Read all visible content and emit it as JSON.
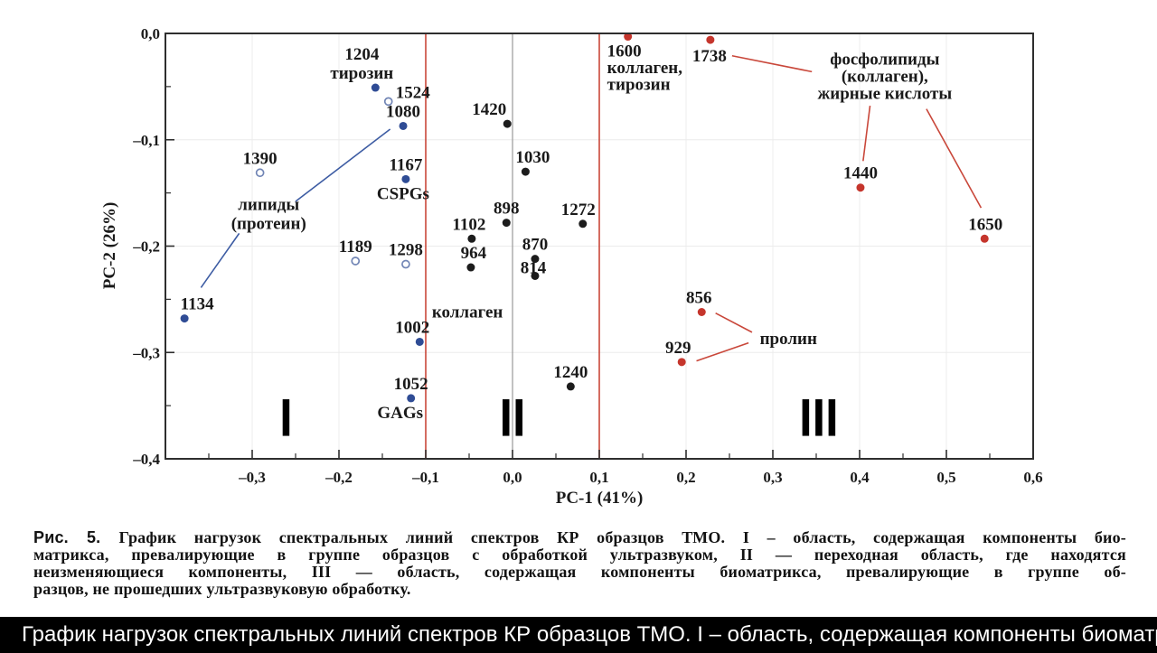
{
  "figure": {
    "caption": {
      "label": "Рис. 5.",
      "lines": [
        "График нагрузок спектральных линий спектров КР образцов ТМО. I – область, содержащая компоненты био-",
        "матрикса, превалирующие в группе образцов с обработкой ультразвуком, II — переходная область, где находятся",
        "неизменяющиеся компоненты, III — область, содержащая компоненты биоматрикса, превалирующие в группе об-",
        "разцов, не прошедших ультразвуковую обработку."
      ]
    },
    "bottom_bar": {
      "text": "График нагрузок спектральных линий спектров КР образцов ТМО. I – область, содержащая компоненты биоматр",
      "bg": "#000000",
      "fg": "#ffffff"
    }
  },
  "chart_data": {
    "type": "scatter",
    "title": "",
    "xlabel": "PC-1 (41%)",
    "ylabel": "PC-2 (26%)",
    "xlim": [
      -0.4,
      0.6
    ],
    "ylim": [
      -0.4,
      0.0
    ],
    "grid": {
      "x": [
        -0.3,
        -0.2,
        -0.1,
        0.1,
        0.2,
        0.3,
        0.4,
        0.5
      ],
      "y": [
        -0.1,
        -0.2,
        -0.3
      ]
    },
    "x_axis": {
      "major": [
        {
          "v": -0.3,
          "label": "–0,3"
        },
        {
          "v": -0.2,
          "label": "–0,2"
        },
        {
          "v": -0.1,
          "label": "–0,1"
        },
        {
          "v": 0.0,
          "label": "0,0"
        },
        {
          "v": 0.1,
          "label": "0,1"
        },
        {
          "v": 0.2,
          "label": "0,2"
        },
        {
          "v": 0.3,
          "label": "0,3"
        },
        {
          "v": 0.4,
          "label": "0,4"
        },
        {
          "v": 0.5,
          "label": "0,5"
        },
        {
          "v": 0.6,
          "label": "0,6"
        }
      ],
      "minor": [
        -0.35,
        -0.25,
        -0.15,
        -0.05,
        0.05,
        0.15,
        0.25,
        0.35,
        0.45,
        0.55
      ]
    },
    "y_axis": {
      "major": [
        {
          "v": 0.0,
          "label": "0,0"
        },
        {
          "v": -0.1,
          "label": "–0,1"
        },
        {
          "v": -0.2,
          "label": "–0,2"
        },
        {
          "v": -0.3,
          "label": "–0,3"
        },
        {
          "v": -0.4,
          "label": "–0,4"
        }
      ],
      "minor": [
        -0.05,
        -0.15,
        -0.25,
        -0.35
      ]
    },
    "boundary_lines": [
      {
        "x": -0.1
      },
      {
        "x": 0.1
      }
    ],
    "zero_line": {
      "x": 0.0
    },
    "colors": {
      "blue_filled": "#2f4c95",
      "blue_open": "#7185b5",
      "black": "#1c1c1c",
      "red": "#c5352c",
      "red_line": "#c9473a",
      "blue_line": "#3d5ca3",
      "boundary_red": "#c9473a",
      "zero_gray": "#9a9a9a",
      "spine": "#2e2e2e",
      "grid": "#ececec"
    },
    "series": [
      {
        "name": "region-I-blue-filled",
        "marker": "filled",
        "color": "#2f4c95",
        "points": [
          {
            "label": "1204",
            "lines": [
              "1204",
              "тирозин"
            ],
            "x": -0.158,
            "y": -0.051,
            "side": "above",
            "dx": -15
          },
          {
            "label": "1080",
            "x": -0.126,
            "y": -0.087,
            "side": "above",
            "dx": 0
          },
          {
            "label": "1167",
            "x": -0.123,
            "y": -0.137,
            "side": "above",
            "dx": 0,
            "sub": "CSPGs",
            "subdx": -3
          },
          {
            "label": "1134",
            "x": -0.378,
            "y": -0.268,
            "side": "above",
            "dx": 14
          },
          {
            "label": "1002",
            "x": -0.107,
            "y": -0.29,
            "side": "above",
            "dx": -8
          },
          {
            "label": "1052",
            "x": -0.117,
            "y": -0.343,
            "side": "above",
            "dx": 0,
            "sub": "GAGs",
            "subdx": -12
          }
        ]
      },
      {
        "name": "region-I-blue-open",
        "marker": "open",
        "color": "#7185b5",
        "points": [
          {
            "label": "1524",
            "x": -0.143,
            "y": -0.064,
            "side": "right",
            "dx": 0
          },
          {
            "label": "1390",
            "x": -0.291,
            "y": -0.131,
            "side": "above",
            "dx": 0
          },
          {
            "label": "1189",
            "x": -0.181,
            "y": -0.214,
            "side": "above",
            "dx": 0
          },
          {
            "label": "1298",
            "x": -0.123,
            "y": -0.217,
            "side": "above",
            "dx": 0
          }
        ]
      },
      {
        "name": "transition-II-black",
        "marker": "filled",
        "color": "#1c1c1c",
        "points": [
          {
            "label": "1420",
            "x": -0.006,
            "y": -0.085,
            "side": "above",
            "dx": -20
          },
          {
            "label": "1030",
            "x": 0.015,
            "y": -0.13,
            "side": "above",
            "dx": 8
          },
          {
            "label": "898",
            "x": -0.007,
            "y": -0.178,
            "side": "above",
            "dx": 0
          },
          {
            "label": "1102",
            "x": -0.047,
            "y": -0.193,
            "side": "above",
            "dx": -3
          },
          {
            "label": "964",
            "x": -0.048,
            "y": -0.22,
            "side": "above",
            "dx": 3
          },
          {
            "label": "870",
            "x": 0.026,
            "y": -0.212,
            "side": "above",
            "dx": 0
          },
          {
            "label": "814",
            "x": 0.026,
            "y": -0.228,
            "side": "above",
            "dx": -2,
            "ldy": 7
          },
          {
            "label": "1272",
            "x": 0.081,
            "y": -0.179,
            "side": "above",
            "dx": -5
          },
          {
            "label": "1240",
            "x": 0.067,
            "y": -0.332,
            "side": "above",
            "dx": 0
          }
        ]
      },
      {
        "name": "region-III-red",
        "marker": "filled",
        "color": "#c5352c",
        "points": [
          {
            "label": "1600",
            "lines": [
              "1600",
              "коллаген,",
              "тирозин"
            ],
            "x": 0.133,
            "y": -0.003,
            "side": "below-left",
            "dx": 0
          },
          {
            "label": "1738",
            "x": 0.228,
            "y": -0.006,
            "side": "below",
            "dx": -1
          },
          {
            "label": "1440",
            "x": 0.401,
            "y": -0.145,
            "side": "above",
            "dx": 0
          },
          {
            "label": "1650",
            "x": 0.544,
            "y": -0.193,
            "side": "above",
            "dx": 1
          },
          {
            "label": "856",
            "x": 0.218,
            "y": -0.262,
            "side": "above",
            "dx": -3
          },
          {
            "label": "929",
            "x": 0.195,
            "y": -0.309,
            "side": "above",
            "dx": -4
          }
        ]
      }
    ],
    "region_markers": [
      {
        "label": "I",
        "bars": 1,
        "x": -0.261,
        "y": -0.361
      },
      {
        "label": "II",
        "bars": 2,
        "x": 0.0,
        "y": -0.361
      },
      {
        "label": "III",
        "bars": 3,
        "x": 0.353,
        "y": -0.361
      }
    ],
    "annotations": {
      "texts": [
        {
          "name": "lipids-label",
          "x": -0.281,
          "y": -0.161,
          "lines": [
            "липиды",
            "(протеин)"
          ],
          "lh": 21
        },
        {
          "name": "phospholipids-label",
          "x": 0.429,
          "y": -0.024,
          "lines": [
            "фосфолипиды",
            "(коллаген),",
            "жирные кислоты"
          ],
          "lh": 19
        },
        {
          "name": "proline-label",
          "x": 0.318,
          "y": -0.287,
          "lines": [
            "пролин"
          ],
          "lh": 21
        },
        {
          "name": "collagen-label",
          "x": -0.052,
          "y": -0.262,
          "lines": [
            "коллаген"
          ],
          "lh": 21
        }
      ],
      "leaders": [
        {
          "color": "#3d5ca3",
          "x1": -0.25,
          "y1": -0.158,
          "x2": -0.141,
          "y2": -0.09
        },
        {
          "color": "#3d5ca3",
          "x1": -0.315,
          "y1": -0.188,
          "x2": -0.359,
          "y2": -0.239
        },
        {
          "color": "#c9473a",
          "x1": 0.253,
          "y1": -0.021,
          "x2": 0.345,
          "y2": -0.036
        },
        {
          "color": "#c9473a",
          "x1": 0.412,
          "y1": -0.068,
          "x2": 0.404,
          "y2": -0.12
        },
        {
          "color": "#c9473a",
          "x1": 0.477,
          "y1": -0.071,
          "x2": 0.54,
          "y2": -0.164
        },
        {
          "color": "#c9473a",
          "x1": 0.234,
          "y1": -0.263,
          "x2": 0.276,
          "y2": -0.281
        },
        {
          "color": "#c9473a",
          "x1": 0.272,
          "y1": -0.291,
          "x2": 0.212,
          "y2": -0.308
        }
      ]
    }
  }
}
